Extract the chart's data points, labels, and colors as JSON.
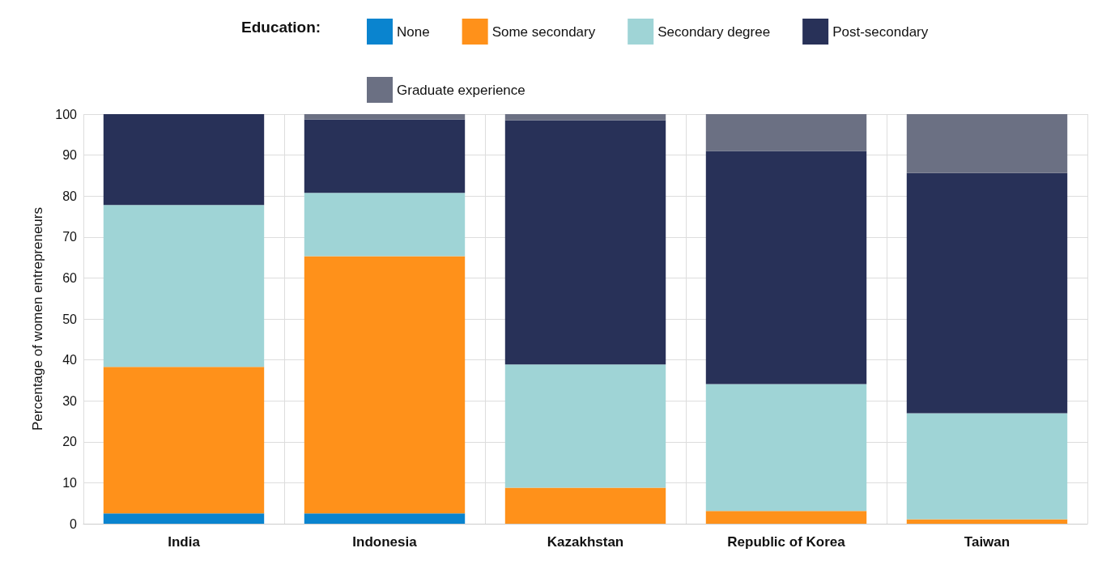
{
  "chart_data": {
    "type": "bar",
    "stacked": true,
    "legend_title": "Education:",
    "ylabel": "Percentage of women entrepreneurs",
    "categories": [
      "India",
      "Indonesia",
      "Kazakhstan",
      "Republic of Korea",
      "Taiwan"
    ],
    "series": [
      {
        "name": "None",
        "color": "#0a84cf",
        "values": [
          2.5,
          2.5,
          0,
          0,
          0
        ]
      },
      {
        "name": "Some secondary",
        "color": "#ff911a",
        "values": [
          35.8,
          62.8,
          8.8,
          3.1,
          1.1
        ]
      },
      {
        "name": "Secondary degree",
        "color": "#9fd4d6",
        "values": [
          39.5,
          15.5,
          30.1,
          31,
          25.9
        ]
      },
      {
        "name": "Post-secondary",
        "color": "#283158",
        "values": [
          22.2,
          17.9,
          59.6,
          56.9,
          58.6
        ]
      },
      {
        "name": "Graduate experience",
        "color": "#6b7083",
        "values": [
          0,
          1.3,
          1.5,
          9,
          14.4
        ]
      }
    ],
    "ylim": [
      0,
      100
    ],
    "yticks": [
      0,
      10,
      20,
      30,
      40,
      50,
      60,
      70,
      80,
      90,
      100
    ],
    "grid": true,
    "legend": "top"
  }
}
